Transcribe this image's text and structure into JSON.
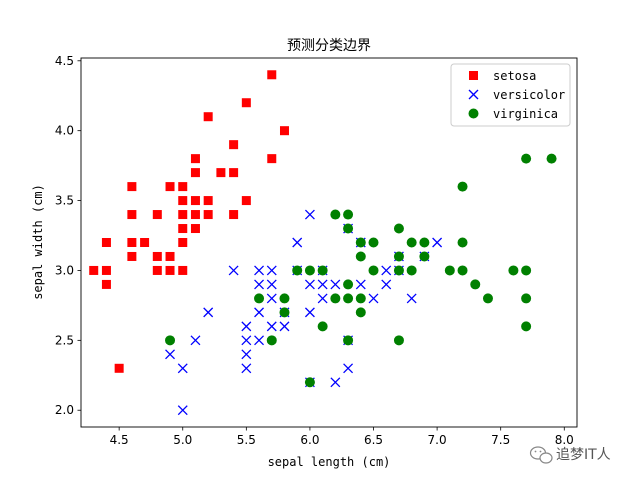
{
  "chart_data": {
    "type": "scatter",
    "title": "预测分类边界",
    "xlabel": "sepal length (cm)",
    "ylabel": "sepal width (cm)",
    "xlim": [
      4.2,
      8.1
    ],
    "ylim": [
      1.88,
      4.52
    ],
    "xticks": [
      "4.5",
      "5.0",
      "5.5",
      "6.0",
      "6.5",
      "7.0",
      "7.5",
      "8.0"
    ],
    "yticks": [
      "2.0",
      "2.5",
      "3.0",
      "3.5",
      "4.0",
      "4.5"
    ],
    "grid": false,
    "legend_position": "top-right",
    "series": [
      {
        "name": "setosa",
        "marker": "square",
        "color": "#ff0000",
        "points": [
          [
            4.3,
            3.0
          ],
          [
            4.4,
            3.2
          ],
          [
            4.4,
            3.0
          ],
          [
            4.4,
            2.9
          ],
          [
            4.5,
            2.3
          ],
          [
            4.6,
            3.6
          ],
          [
            4.6,
            3.4
          ],
          [
            4.6,
            3.2
          ],
          [
            4.6,
            3.1
          ],
          [
            4.7,
            3.2
          ],
          [
            4.8,
            3.4
          ],
          [
            4.8,
            3.1
          ],
          [
            4.8,
            3.0
          ],
          [
            4.9,
            3.6
          ],
          [
            4.9,
            3.1
          ],
          [
            4.9,
            3.0
          ],
          [
            5.0,
            3.6
          ],
          [
            5.0,
            3.5
          ],
          [
            5.0,
            3.4
          ],
          [
            5.0,
            3.3
          ],
          [
            5.0,
            3.2
          ],
          [
            5.0,
            3.0
          ],
          [
            5.1,
            3.8
          ],
          [
            5.1,
            3.7
          ],
          [
            5.1,
            3.5
          ],
          [
            5.1,
            3.4
          ],
          [
            5.1,
            3.3
          ],
          [
            5.2,
            4.1
          ],
          [
            5.2,
            3.5
          ],
          [
            5.2,
            3.4
          ],
          [
            5.3,
            3.7
          ],
          [
            5.4,
            3.9
          ],
          [
            5.4,
            3.7
          ],
          [
            5.4,
            3.4
          ],
          [
            5.5,
            4.2
          ],
          [
            5.5,
            3.5
          ],
          [
            5.7,
            4.4
          ],
          [
            5.7,
            3.8
          ],
          [
            5.8,
            4.0
          ]
        ]
      },
      {
        "name": "versicolor",
        "marker": "x",
        "color": "#0000ff",
        "points": [
          [
            4.9,
            2.4
          ],
          [
            5.0,
            2.3
          ],
          [
            5.0,
            2.0
          ],
          [
            5.1,
            2.5
          ],
          [
            5.2,
            2.7
          ],
          [
            5.4,
            3.0
          ],
          [
            5.5,
            2.6
          ],
          [
            5.5,
            2.5
          ],
          [
            5.5,
            2.4
          ],
          [
            5.5,
            2.3
          ],
          [
            5.6,
            3.0
          ],
          [
            5.6,
            2.9
          ],
          [
            5.6,
            2.7
          ],
          [
            5.6,
            2.5
          ],
          [
            5.7,
            3.0
          ],
          [
            5.7,
            2.9
          ],
          [
            5.7,
            2.8
          ],
          [
            5.7,
            2.6
          ],
          [
            5.8,
            2.7
          ],
          [
            5.8,
            2.6
          ],
          [
            5.9,
            3.2
          ],
          [
            5.9,
            3.0
          ],
          [
            6.0,
            3.4
          ],
          [
            6.0,
            2.9
          ],
          [
            6.0,
            2.7
          ],
          [
            6.0,
            2.2
          ],
          [
            6.1,
            3.0
          ],
          [
            6.1,
            2.9
          ],
          [
            6.1,
            2.8
          ],
          [
            6.2,
            2.9
          ],
          [
            6.2,
            2.2
          ],
          [
            6.3,
            3.3
          ],
          [
            6.3,
            2.5
          ],
          [
            6.3,
            2.3
          ],
          [
            6.4,
            3.2
          ],
          [
            6.4,
            2.9
          ],
          [
            6.5,
            2.8
          ],
          [
            6.6,
            3.0
          ],
          [
            6.6,
            2.9
          ],
          [
            6.7,
            3.1
          ],
          [
            6.7,
            3.0
          ],
          [
            6.8,
            2.8
          ],
          [
            6.9,
            3.1
          ],
          [
            7.0,
            3.2
          ]
        ]
      },
      {
        "name": "virginica",
        "marker": "circle",
        "color": "#008000",
        "points": [
          [
            4.9,
            2.5
          ],
          [
            5.6,
            2.8
          ],
          [
            5.7,
            2.5
          ],
          [
            5.8,
            2.8
          ],
          [
            5.8,
            2.7
          ],
          [
            5.9,
            3.0
          ],
          [
            6.0,
            3.0
          ],
          [
            6.0,
            2.2
          ],
          [
            6.1,
            3.0
          ],
          [
            6.1,
            2.6
          ],
          [
            6.2,
            3.4
          ],
          [
            6.2,
            2.8
          ],
          [
            6.3,
            3.4
          ],
          [
            6.3,
            3.3
          ],
          [
            6.3,
            2.9
          ],
          [
            6.3,
            2.8
          ],
          [
            6.3,
            2.5
          ],
          [
            6.4,
            3.2
          ],
          [
            6.4,
            3.1
          ],
          [
            6.4,
            2.8
          ],
          [
            6.4,
            2.7
          ],
          [
            6.5,
            3.2
          ],
          [
            6.5,
            3.0
          ],
          [
            6.7,
            3.3
          ],
          [
            6.7,
            3.1
          ],
          [
            6.7,
            3.0
          ],
          [
            6.7,
            2.5
          ],
          [
            6.8,
            3.2
          ],
          [
            6.8,
            3.0
          ],
          [
            6.9,
            3.2
          ],
          [
            6.9,
            3.1
          ],
          [
            7.1,
            3.0
          ],
          [
            7.2,
            3.6
          ],
          [
            7.2,
            3.2
          ],
          [
            7.2,
            3.0
          ],
          [
            7.3,
            2.9
          ],
          [
            7.4,
            2.8
          ],
          [
            7.6,
            3.0
          ],
          [
            7.7,
            3.8
          ],
          [
            7.7,
            3.0
          ],
          [
            7.7,
            2.8
          ],
          [
            7.7,
            2.6
          ],
          [
            7.9,
            3.8
          ]
        ]
      }
    ]
  },
  "watermark": {
    "text": "追梦IT人",
    "icon": "wechat-icon"
  }
}
